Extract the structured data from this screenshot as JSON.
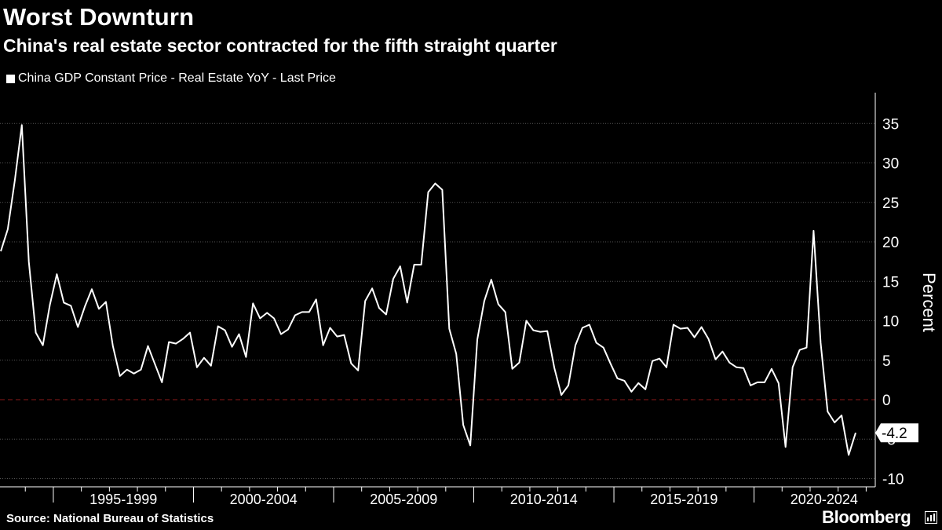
{
  "title": "Worst Downturn",
  "subtitle": "China's real estate sector contracted for the fifth straight quarter",
  "legend": {
    "label": "China GDP Constant Price - Real Estate YoY - Last Price"
  },
  "source": "Source: National Bureau of Statistics",
  "brand": "Bloomberg",
  "colors": {
    "background": "#000000",
    "line": "#ffffff",
    "grid": "#555555",
    "zero_line": "#8b1a1a"
  },
  "chart_data": {
    "type": "line",
    "title": "Worst Downturn",
    "ylabel": "Percent",
    "xlabel": "",
    "ylim": [
      -11.5,
      39
    ],
    "yticks": [
      -10,
      -5,
      0,
      5,
      10,
      15,
      20,
      25,
      30,
      35
    ],
    "xgroups": [
      "1995-1999",
      "2000-2004",
      "2005-2009",
      "2010-2014",
      "2015-2019",
      "2020-2024"
    ],
    "x_start": "1993-Q1",
    "frequency": "quarterly",
    "last_value_label": "-4.2",
    "series": [
      {
        "name": "China GDP Constant Price - Real Estate YoY - Last Price",
        "values": [
          18.8,
          21.6,
          27.8,
          34.8,
          17.5,
          8.5,
          6.9,
          12.0,
          15.9,
          12.3,
          11.9,
          9.2,
          11.8,
          14.0,
          11.5,
          12.4,
          6.8,
          3.0,
          3.8,
          3.3,
          3.8,
          6.8,
          4.5,
          2.2,
          7.3,
          7.1,
          7.7,
          8.5,
          4.1,
          5.3,
          4.3,
          9.3,
          8.8,
          6.7,
          8.3,
          5.4,
          12.2,
          10.3,
          11.0,
          10.3,
          8.3,
          8.9,
          10.7,
          11.1,
          11.1,
          12.7,
          6.9,
          9.1,
          8.0,
          8.2,
          4.6,
          3.7,
          12.5,
          14.1,
          11.6,
          10.8,
          15.3,
          16.9,
          12.3,
          17.1,
          17.1,
          26.3,
          27.4,
          26.6,
          9.0,
          5.8,
          -3.2,
          -5.8,
          7.6,
          12.5,
          15.2,
          12.1,
          11.1,
          3.9,
          4.7,
          10.0,
          8.8,
          8.6,
          8.7,
          4.0,
          0.6,
          1.8,
          6.9,
          9.1,
          9.5,
          7.2,
          6.6,
          4.6,
          2.7,
          2.4,
          1.0,
          2.1,
          1.3,
          4.9,
          5.2,
          4.1,
          9.5,
          9.0,
          9.1,
          7.9,
          9.2,
          7.7,
          5.1,
          6.1,
          4.7,
          4.1,
          4.0,
          1.8,
          2.2,
          2.2,
          3.9,
          2.1,
          -6.0,
          4.1,
          6.3,
          6.6,
          21.4,
          7.2,
          -1.5,
          -2.9,
          -2.0,
          -7.0,
          -4.2
        ]
      }
    ]
  }
}
